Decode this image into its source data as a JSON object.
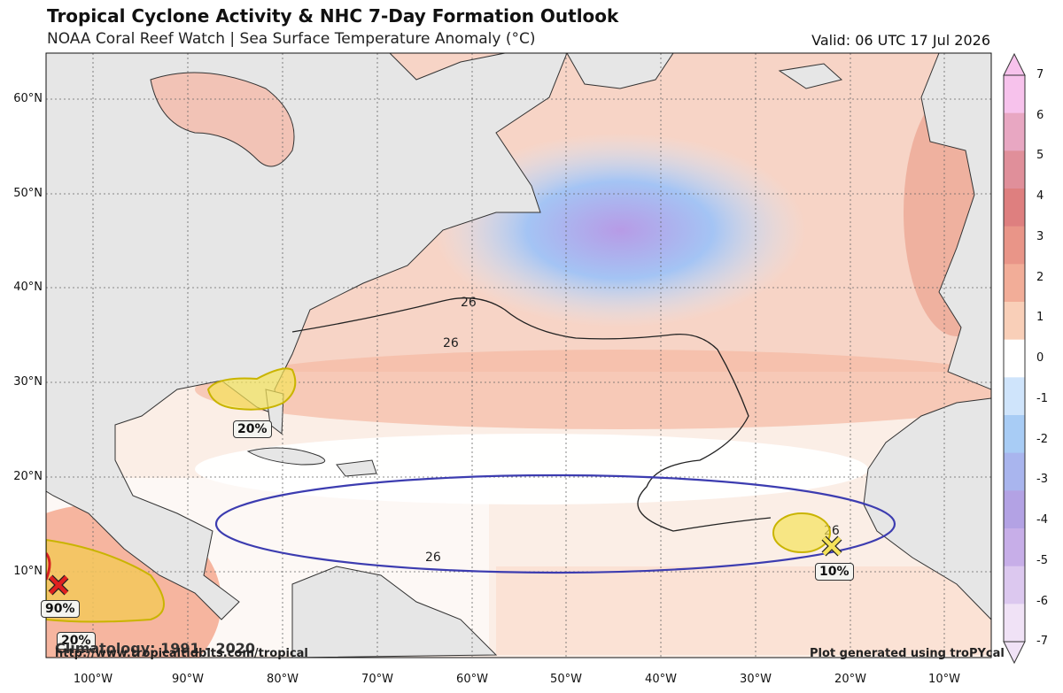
{
  "header": {
    "title": "Tropical Cyclone Activity & NHC 7-Day Formation Outlook",
    "subtitle": "NOAA Coral Reef Watch | Sea Surface Temperature Anomaly (°C)",
    "valid": "Valid: 06 UTC 17 Jul 2026"
  },
  "axes": {
    "lat_labels": [
      "60°N",
      "50°N",
      "40°N",
      "30°N",
      "20°N",
      "10°N"
    ],
    "lon_labels": [
      "100°W",
      "90°W",
      "80°W",
      "70°W",
      "60°W",
      "50°W",
      "40°W",
      "30°W",
      "20°W",
      "10°W"
    ]
  },
  "colorbar": {
    "labels": [
      "7",
      "6",
      "5",
      "4",
      "3",
      "2",
      "1",
      "0",
      "-1",
      "-2",
      "-3",
      "-4",
      "-5",
      "-6",
      "-7"
    ],
    "colors": [
      "#f7c2ec",
      "#e8a7c2",
      "#e08f9a",
      "#de7f7f",
      "#e99588",
      "#f2ad98",
      "#f9cfb8",
      "#ffffff",
      "#cfe4fb",
      "#a8ccf5",
      "#a9b5ee",
      "#b3a2e4",
      "#c7aee8",
      "#dcc8ef",
      "#f0e2f6"
    ]
  },
  "outlook_areas": [
    {
      "label": "20%",
      "color": "#f5e25a",
      "lat": 31,
      "lon": -80
    },
    {
      "label": "10%",
      "color": "#f5e25a",
      "lat": 13,
      "lon": -22
    },
    {
      "label": "90%",
      "color": "#f0c45a",
      "lat": 9,
      "lon": -104
    },
    {
      "label": "20%",
      "color": "#f5e25a",
      "lat": 6,
      "lon": -103
    }
  ],
  "isotherm_label": "26",
  "footer": {
    "left": "Climatology: 1991 - 2020",
    "url": "http://www.tropicaltidbits.com/tropical",
    "right": "Plot generated using troPYcal"
  },
  "colors": {
    "land": "#e6e6e6",
    "coast": "#333333",
    "mdr_ellipse": "#3c3cb0",
    "warm": "#f5a88e",
    "cold": "#9ab8f0"
  }
}
